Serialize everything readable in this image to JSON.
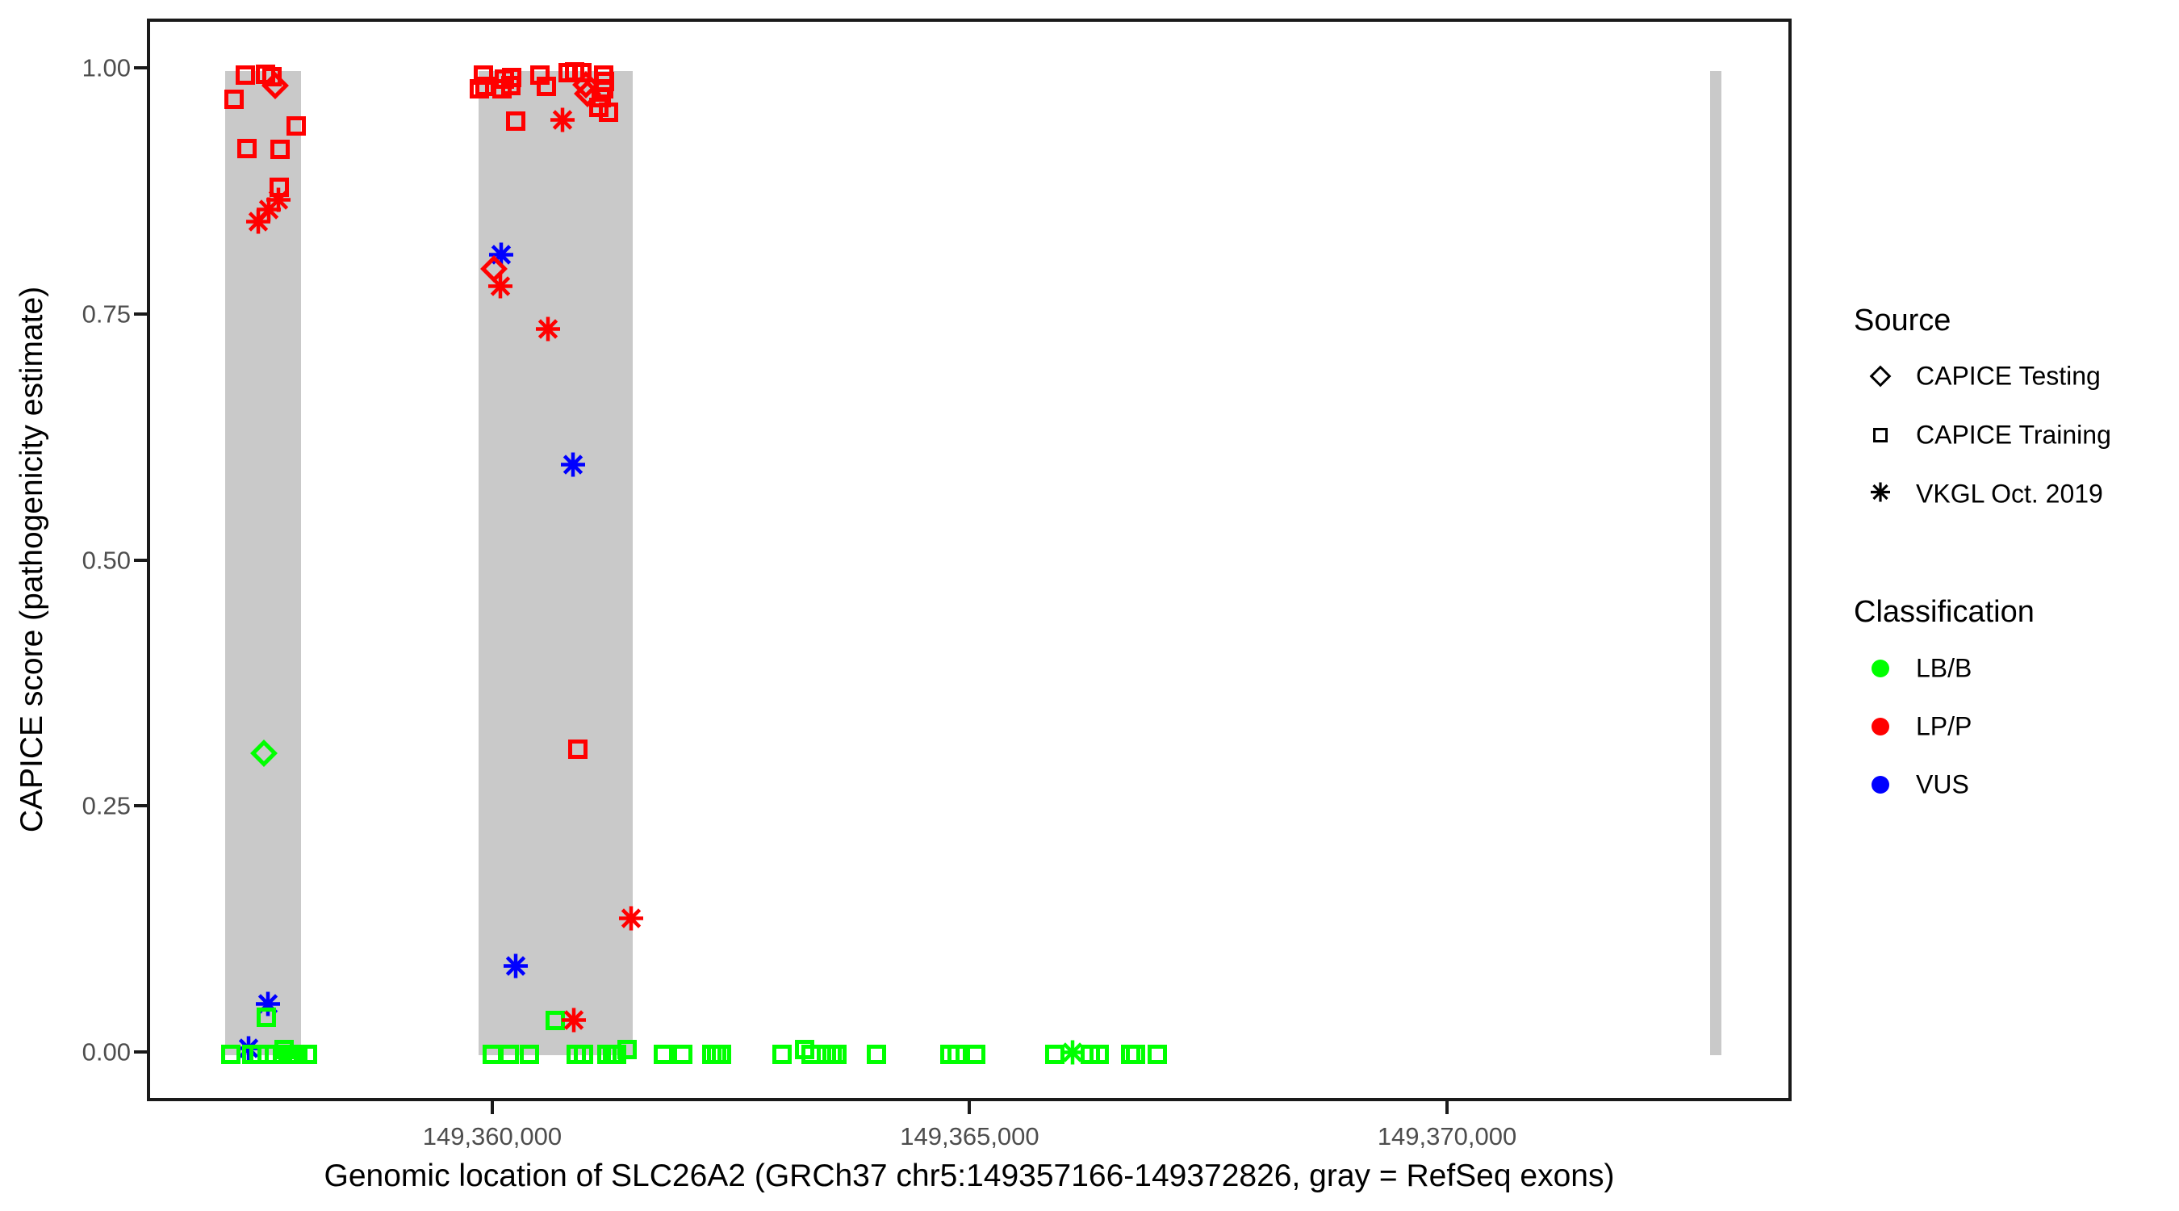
{
  "figure": {
    "background": "#ffffff",
    "panel_border_color": "#1a1a1a",
    "exon_color": "#C9C9C9",
    "tick_label_color": "#4D4D4D"
  },
  "legend": {
    "source": {
      "title": "Source",
      "items": [
        {
          "label": "CAPICE Testing",
          "shape": "diamond"
        },
        {
          "label": "CAPICE Training",
          "shape": "square"
        },
        {
          "label": "VKGL Oct. 2019",
          "shape": "asterisk"
        }
      ]
    },
    "classification": {
      "title": "Classification",
      "items": [
        {
          "label": "LB/B",
          "color": "#00FF00"
        },
        {
          "label": "LP/P",
          "color": "#FF0000"
        },
        {
          "label": "VUS",
          "color": "#0000FF"
        }
      ]
    }
  },
  "chart_data": {
    "type": "scatter",
    "title": "",
    "xlabel": "Genomic location of SLC26A2 (GRCh37 chr5:149357166-149372826, gray = RefSeq exons)",
    "ylabel": "CAPICE score (pathogenicity estimate)",
    "x_domain": [
      149356383,
      149373609
    ],
    "y_domain": [
      -0.05,
      1.05
    ],
    "x_ticks": [
      {
        "value": 149360000,
        "label": "149,360,000"
      },
      {
        "value": 149365000,
        "label": "149,365,000"
      },
      {
        "value": 149370000,
        "label": "149,370,000"
      }
    ],
    "y_ticks": [
      {
        "value": 1.0,
        "label": "1.00"
      },
      {
        "value": 0.75,
        "label": "0.75"
      },
      {
        "value": 0.5,
        "label": "0.50"
      },
      {
        "value": 0.25,
        "label": "0.25"
      },
      {
        "value": 0.0,
        "label": "0.00"
      }
    ],
    "colors": {
      "LB/B": "#00FF00",
      "LP/P": "#FF0000",
      "VUS": "#0000FF"
    },
    "exons_note": "gray rectangles = RefSeq exons, drawn from score 0 to 1",
    "exons": [
      {
        "start": 149357166,
        "end": 149357960
      },
      {
        "start": 149359820,
        "end": 149361438
      },
      {
        "start": 149372720,
        "end": 149372840
      }
    ],
    "points": [
      {
        "bp": 149357380,
        "score": 0.996,
        "source": "CAPICE Training",
        "class": "LP/P"
      },
      {
        "bp": 149357592,
        "score": 0.997,
        "source": "CAPICE Training",
        "class": "LP/P"
      },
      {
        "bp": 149357659,
        "score": 0.994,
        "source": "CAPICE Training",
        "class": "LP/P"
      },
      {
        "bp": 149357693,
        "score": 0.985,
        "source": "CAPICE Testing",
        "class": "LP/P"
      },
      {
        "bp": 149357262,
        "score": 0.971,
        "source": "CAPICE Training",
        "class": "LP/P"
      },
      {
        "bp": 149357913,
        "score": 0.944,
        "source": "CAPICE Training",
        "class": "LP/P"
      },
      {
        "bp": 149357397,
        "score": 0.921,
        "source": "CAPICE Training",
        "class": "LP/P"
      },
      {
        "bp": 149357744,
        "score": 0.92,
        "source": "CAPICE Training",
        "class": "LP/P"
      },
      {
        "bp": 149357735,
        "score": 0.882,
        "source": "CAPICE Training",
        "class": "LP/P"
      },
      {
        "bp": 149357600,
        "score": 0.867,
        "source": "VKGL Oct. 2019",
        "class": "LP/P"
      },
      {
        "bp": 149357499,
        "score": 0.857,
        "source": "VKGL Oct. 2019",
        "class": "LP/P"
      },
      {
        "bp": 149357389,
        "score": 0.845,
        "source": "VKGL Oct. 2019",
        "class": "LP/P"
      },
      {
        "bp": 149357575,
        "score": 0.307,
        "source": "CAPICE Testing",
        "class": "LB/B"
      },
      {
        "bp": 149357490,
        "score": 0.05,
        "source": "VKGL Oct. 2019",
        "class": "VUS"
      },
      {
        "bp": 149357600,
        "score": 0.039,
        "source": "CAPICE Training",
        "class": "LB/B"
      },
      {
        "bp": 149357287,
        "score": 0.005,
        "source": "VKGL Oct. 2019",
        "class": "VUS"
      },
      {
        "bp": 149359874,
        "score": 0.996,
        "source": "CAPICE Training",
        "class": "LP/P"
      },
      {
        "bp": 149359832,
        "score": 0.982,
        "source": "CAPICE Training",
        "class": "LP/P"
      },
      {
        "bp": 149359891,
        "score": 0.984,
        "source": "CAPICE Training",
        "class": "LP/P"
      },
      {
        "bp": 149360094,
        "score": 0.992,
        "source": "CAPICE Training",
        "class": "LP/P"
      },
      {
        "bp": 149360170,
        "score": 0.993,
        "source": "CAPICE Training",
        "class": "LP/P"
      },
      {
        "bp": 149360068,
        "score": 0.982,
        "source": "CAPICE Training",
        "class": "LP/P"
      },
      {
        "bp": 149360161,
        "score": 0.985,
        "source": "CAPICE Training",
        "class": "LP/P"
      },
      {
        "bp": 149360466,
        "score": 0.996,
        "source": "CAPICE Training",
        "class": "LP/P"
      },
      {
        "bp": 149360533,
        "score": 0.984,
        "source": "CAPICE Training",
        "class": "LP/P"
      },
      {
        "bp": 149360761,
        "score": 0.998,
        "source": "CAPICE Training",
        "class": "LP/P"
      },
      {
        "bp": 149360829,
        "score": 0.999,
        "source": "CAPICE Training",
        "class": "LP/P"
      },
      {
        "bp": 149360905,
        "score": 0.998,
        "source": "CAPICE Training",
        "class": "LP/P"
      },
      {
        "bp": 149360947,
        "score": 0.986,
        "source": "CAPICE Testing",
        "class": "LP/P"
      },
      {
        "bp": 149360964,
        "score": 0.977,
        "source": "CAPICE Testing",
        "class": "LP/P"
      },
      {
        "bp": 149361133,
        "score": 0.996,
        "source": "CAPICE Training",
        "class": "LP/P"
      },
      {
        "bp": 149361141,
        "score": 0.989,
        "source": "CAPICE Training",
        "class": "LP/P"
      },
      {
        "bp": 149361133,
        "score": 0.982,
        "source": "CAPICE Training",
        "class": "LP/P"
      },
      {
        "bp": 149361108,
        "score": 0.973,
        "source": "CAPICE Training",
        "class": "LP/P"
      },
      {
        "bp": 149361083,
        "score": 0.963,
        "source": "CAPICE Training",
        "class": "LP/P"
      },
      {
        "bp": 149361184,
        "score": 0.958,
        "source": "CAPICE Training",
        "class": "LP/P"
      },
      {
        "bp": 149360212,
        "score": 0.949,
        "source": "CAPICE Training",
        "class": "LP/P"
      },
      {
        "bp": 149360575,
        "score": 0.948,
        "source": "VKGL Oct. 2019",
        "class": "LP/P"
      },
      {
        "bp": 149359933,
        "score": 0.811,
        "source": "VKGL Oct. 2019",
        "class": "VUS"
      },
      {
        "bp": 149359984,
        "score": 0.799,
        "source": "CAPICE Testing",
        "class": "LP/P"
      },
      {
        "bp": 149359925,
        "score": 0.779,
        "source": "VKGL Oct. 2019",
        "class": "LP/P"
      },
      {
        "bp": 149360423,
        "score": 0.736,
        "source": "VKGL Oct. 2019",
        "class": "LP/P"
      },
      {
        "bp": 149360685,
        "score": 0.598,
        "source": "VKGL Oct. 2019",
        "class": "VUS"
      },
      {
        "bp": 149360863,
        "score": 0.311,
        "source": "CAPICE Training",
        "class": "LP/P"
      },
      {
        "bp": 149361294,
        "score": 0.137,
        "source": "VKGL Oct. 2019",
        "class": "LP/P"
      },
      {
        "bp": 149360085,
        "score": 0.089,
        "source": "VKGL Oct. 2019",
        "class": "VUS"
      },
      {
        "bp": 149360626,
        "score": 0.035,
        "source": "CAPICE Training",
        "class": "LB/B"
      },
      {
        "bp": 149360694,
        "score": 0.034,
        "source": "VKGL Oct. 2019",
        "class": "LP/P"
      },
      {
        "bp": 149357228,
        "score": 0.001,
        "source": "CAPICE Training",
        "class": "LB/B"
      },
      {
        "bp": 149357448,
        "score": 0.001,
        "source": "CAPICE Training",
        "class": "LB/B"
      },
      {
        "bp": 149357524,
        "score": 0.001,
        "source": "CAPICE Training",
        "class": "LB/B"
      },
      {
        "bp": 149357608,
        "score": 0.001,
        "source": "CAPICE Training",
        "class": "LB/B"
      },
      {
        "bp": 149357684,
        "score": 0.001,
        "source": "CAPICE Training",
        "class": "LB/B"
      },
      {
        "bp": 149357786,
        "score": 0.006,
        "source": "CAPICE Training",
        "class": "LB/B"
      },
      {
        "bp": 149357828,
        "score": 0.001,
        "source": "CAPICE Training",
        "class": "LB/B"
      },
      {
        "bp": 149357887,
        "score": 0.001,
        "source": "CAPICE Training",
        "class": "LB/B"
      },
      {
        "bp": 149357930,
        "score": 0.001,
        "source": "CAPICE Training",
        "class": "LB/B"
      },
      {
        "bp": 149358031,
        "score": 0.001,
        "source": "CAPICE Training",
        "class": "LB/B"
      },
      {
        "bp": 149359967,
        "score": 0.001,
        "source": "CAPICE Training",
        "class": "LB/B"
      },
      {
        "bp": 149360144,
        "score": 0.001,
        "source": "CAPICE Training",
        "class": "LB/B"
      },
      {
        "bp": 149360356,
        "score": 0.001,
        "source": "CAPICE Training",
        "class": "LB/B"
      },
      {
        "bp": 149360846,
        "score": 0.001,
        "source": "CAPICE Training",
        "class": "LB/B"
      },
      {
        "bp": 149360922,
        "score": 0.001,
        "source": "CAPICE Training",
        "class": "LB/B"
      },
      {
        "bp": 149361167,
        "score": 0.001,
        "source": "CAPICE Training",
        "class": "LB/B"
      },
      {
        "bp": 149361226,
        "score": 0.001,
        "source": "CAPICE Training",
        "class": "LB/B"
      },
      {
        "bp": 149361268,
        "score": 0.001,
        "source": "CAPICE Training",
        "class": "LB/B"
      },
      {
        "bp": 149361378,
        "score": 0.006,
        "source": "CAPICE Training",
        "class": "LB/B"
      },
      {
        "bp": 149361758,
        "score": 0.001,
        "source": "CAPICE Training",
        "class": "LB/B"
      },
      {
        "bp": 149361961,
        "score": 0.001,
        "source": "CAPICE Training",
        "class": "LB/B"
      },
      {
        "bp": 149362265,
        "score": 0.001,
        "source": "CAPICE Training",
        "class": "LB/B"
      },
      {
        "bp": 149362316,
        "score": 0.001,
        "source": "CAPICE Training",
        "class": "LB/B"
      },
      {
        "bp": 149362367,
        "score": 0.001,
        "source": "CAPICE Training",
        "class": "LB/B"
      },
      {
        "bp": 149363001,
        "score": 0.001,
        "source": "CAPICE Training",
        "class": "LB/B"
      },
      {
        "bp": 149363237,
        "score": 0.006,
        "source": "CAPICE Training",
        "class": "LB/B"
      },
      {
        "bp": 149363305,
        "score": 0.001,
        "source": "CAPICE Training",
        "class": "LB/B"
      },
      {
        "bp": 149363465,
        "score": 0.001,
        "source": "CAPICE Training",
        "class": "LB/B"
      },
      {
        "bp": 149363524,
        "score": 0.001,
        "source": "CAPICE Training",
        "class": "LB/B"
      },
      {
        "bp": 149363575,
        "score": 0.001,
        "source": "CAPICE Training",
        "class": "LB/B"
      },
      {
        "bp": 149363989,
        "score": 0.001,
        "source": "CAPICE Training",
        "class": "LB/B"
      },
      {
        "bp": 149364758,
        "score": 0.001,
        "source": "CAPICE Training",
        "class": "LB/B"
      },
      {
        "bp": 149364834,
        "score": 0.001,
        "source": "CAPICE Training",
        "class": "LB/B"
      },
      {
        "bp": 149365029,
        "score": 0.001,
        "source": "CAPICE Training",
        "class": "LB/B"
      },
      {
        "bp": 149365857,
        "score": 0.001,
        "source": "CAPICE Training",
        "class": "LB/B"
      },
      {
        "bp": 149365916,
        "score": 0.001,
        "source": "VKGL Oct. 2019",
        "class": "LB/B"
      },
      {
        "bp": 149366229,
        "score": 0.001,
        "source": "CAPICE Training",
        "class": "LB/B"
      },
      {
        "bp": 149366322,
        "score": 0.001,
        "source": "CAPICE Training",
        "class": "LB/B"
      },
      {
        "bp": 149366651,
        "score": 0.001,
        "source": "CAPICE Training",
        "class": "LB/B"
      },
      {
        "bp": 149366702,
        "score": 0.001,
        "source": "CAPICE Training",
        "class": "LB/B"
      },
      {
        "bp": 149366930,
        "score": 0.001,
        "source": "CAPICE Training",
        "class": "LB/B"
      }
    ]
  }
}
